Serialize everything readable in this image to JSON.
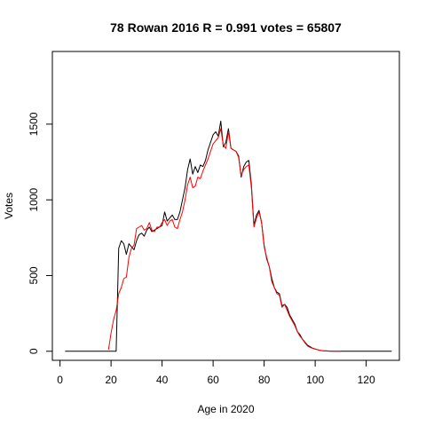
{
  "chart_data": {
    "type": "line",
    "title": "78 Rowan 2016 R = 0.991 votes = 65807",
    "xlabel": "Age in 2020",
    "ylabel": "Votes",
    "xlim": [
      -3,
      133
    ],
    "ylim": [
      -60,
      1980
    ],
    "xticks": [
      0,
      20,
      40,
      60,
      80,
      100,
      120
    ],
    "yticks": [
      0,
      500,
      1000,
      1500
    ],
    "grid": false,
    "series": [
      {
        "color": "#000000",
        "x": [
          2,
          20,
          21,
          22,
          23,
          24,
          25,
          26,
          27,
          28,
          29,
          30,
          31,
          32,
          33,
          34,
          35,
          36,
          37,
          38,
          39,
          40,
          41,
          42,
          43,
          44,
          45,
          46,
          47,
          48,
          49,
          50,
          51,
          52,
          53,
          54,
          55,
          56,
          57,
          58,
          59,
          60,
          61,
          62,
          63,
          64,
          65,
          66,
          67,
          68,
          69,
          70,
          71,
          72,
          73,
          74,
          75,
          76,
          77,
          78,
          79,
          80,
          81,
          82,
          83,
          84,
          85,
          86,
          87,
          88,
          89,
          90,
          91,
          92,
          93,
          94,
          95,
          96,
          97,
          98,
          99,
          100,
          101,
          102,
          103,
          104,
          105,
          106,
          107,
          108,
          110,
          115,
          120,
          125,
          130
        ],
        "y": [
          0,
          0,
          0,
          0,
          680,
          730,
          710,
          640,
          710,
          690,
          670,
          730,
          770,
          780,
          760,
          800,
          820,
          790,
          800,
          810,
          820,
          830,
          920,
          860,
          880,
          900,
          870,
          870,
          920,
          1000,
          1080,
          1200,
          1270,
          1170,
          1220,
          1180,
          1230,
          1220,
          1260,
          1330,
          1380,
          1430,
          1450,
          1420,
          1520,
          1350,
          1380,
          1470,
          1340,
          1330,
          1320,
          1290,
          1150,
          1220,
          1250,
          1260,
          1100,
          830,
          900,
          930,
          850,
          700,
          610,
          560,
          480,
          420,
          390,
          380,
          300,
          310,
          290,
          240,
          210,
          180,
          130,
          110,
          80,
          60,
          40,
          30,
          20,
          15,
          10,
          5,
          3,
          2,
          1,
          0,
          0,
          0,
          0,
          0,
          0,
          0,
          0
        ]
      },
      {
        "color": "#ff0000",
        "x": [
          19,
          20,
          21,
          22,
          23,
          24,
          25,
          26,
          27,
          28,
          29,
          30,
          31,
          32,
          33,
          34,
          35,
          36,
          37,
          38,
          39,
          40,
          41,
          42,
          43,
          44,
          45,
          46,
          47,
          48,
          49,
          50,
          51,
          52,
          53,
          54,
          55,
          56,
          57,
          58,
          59,
          60,
          61,
          62,
          63,
          64,
          65,
          66,
          67,
          68,
          69,
          70,
          71,
          72,
          73,
          74,
          75,
          76,
          77,
          78,
          79,
          80,
          81,
          82,
          83,
          84,
          85,
          86,
          87,
          88,
          89,
          90,
          91,
          92,
          93,
          94,
          95,
          96,
          97,
          98,
          99,
          100,
          101,
          102,
          103,
          104,
          105,
          106,
          107,
          108,
          109,
          110
        ],
        "y": [
          10,
          120,
          210,
          270,
          380,
          420,
          480,
          490,
          620,
          680,
          700,
          810,
          820,
          830,
          800,
          810,
          850,
          800,
          790,
          820,
          820,
          850,
          870,
          830,
          860,
          870,
          820,
          810,
          870,
          920,
          1000,
          1100,
          1150,
          1080,
          1090,
          1150,
          1140,
          1190,
          1230,
          1270,
          1320,
          1370,
          1390,
          1410,
          1470,
          1360,
          1340,
          1450,
          1340,
          1330,
          1320,
          1280,
          1160,
          1200,
          1220,
          1230,
          1080,
          820,
          880,
          920,
          850,
          690,
          620,
          560,
          460,
          420,
          380,
          370,
          290,
          310,
          270,
          230,
          200,
          170,
          130,
          100,
          80,
          55,
          35,
          25,
          20,
          15,
          10,
          6,
          4,
          3,
          2,
          1,
          1,
          0,
          0,
          0
        ]
      }
    ]
  }
}
